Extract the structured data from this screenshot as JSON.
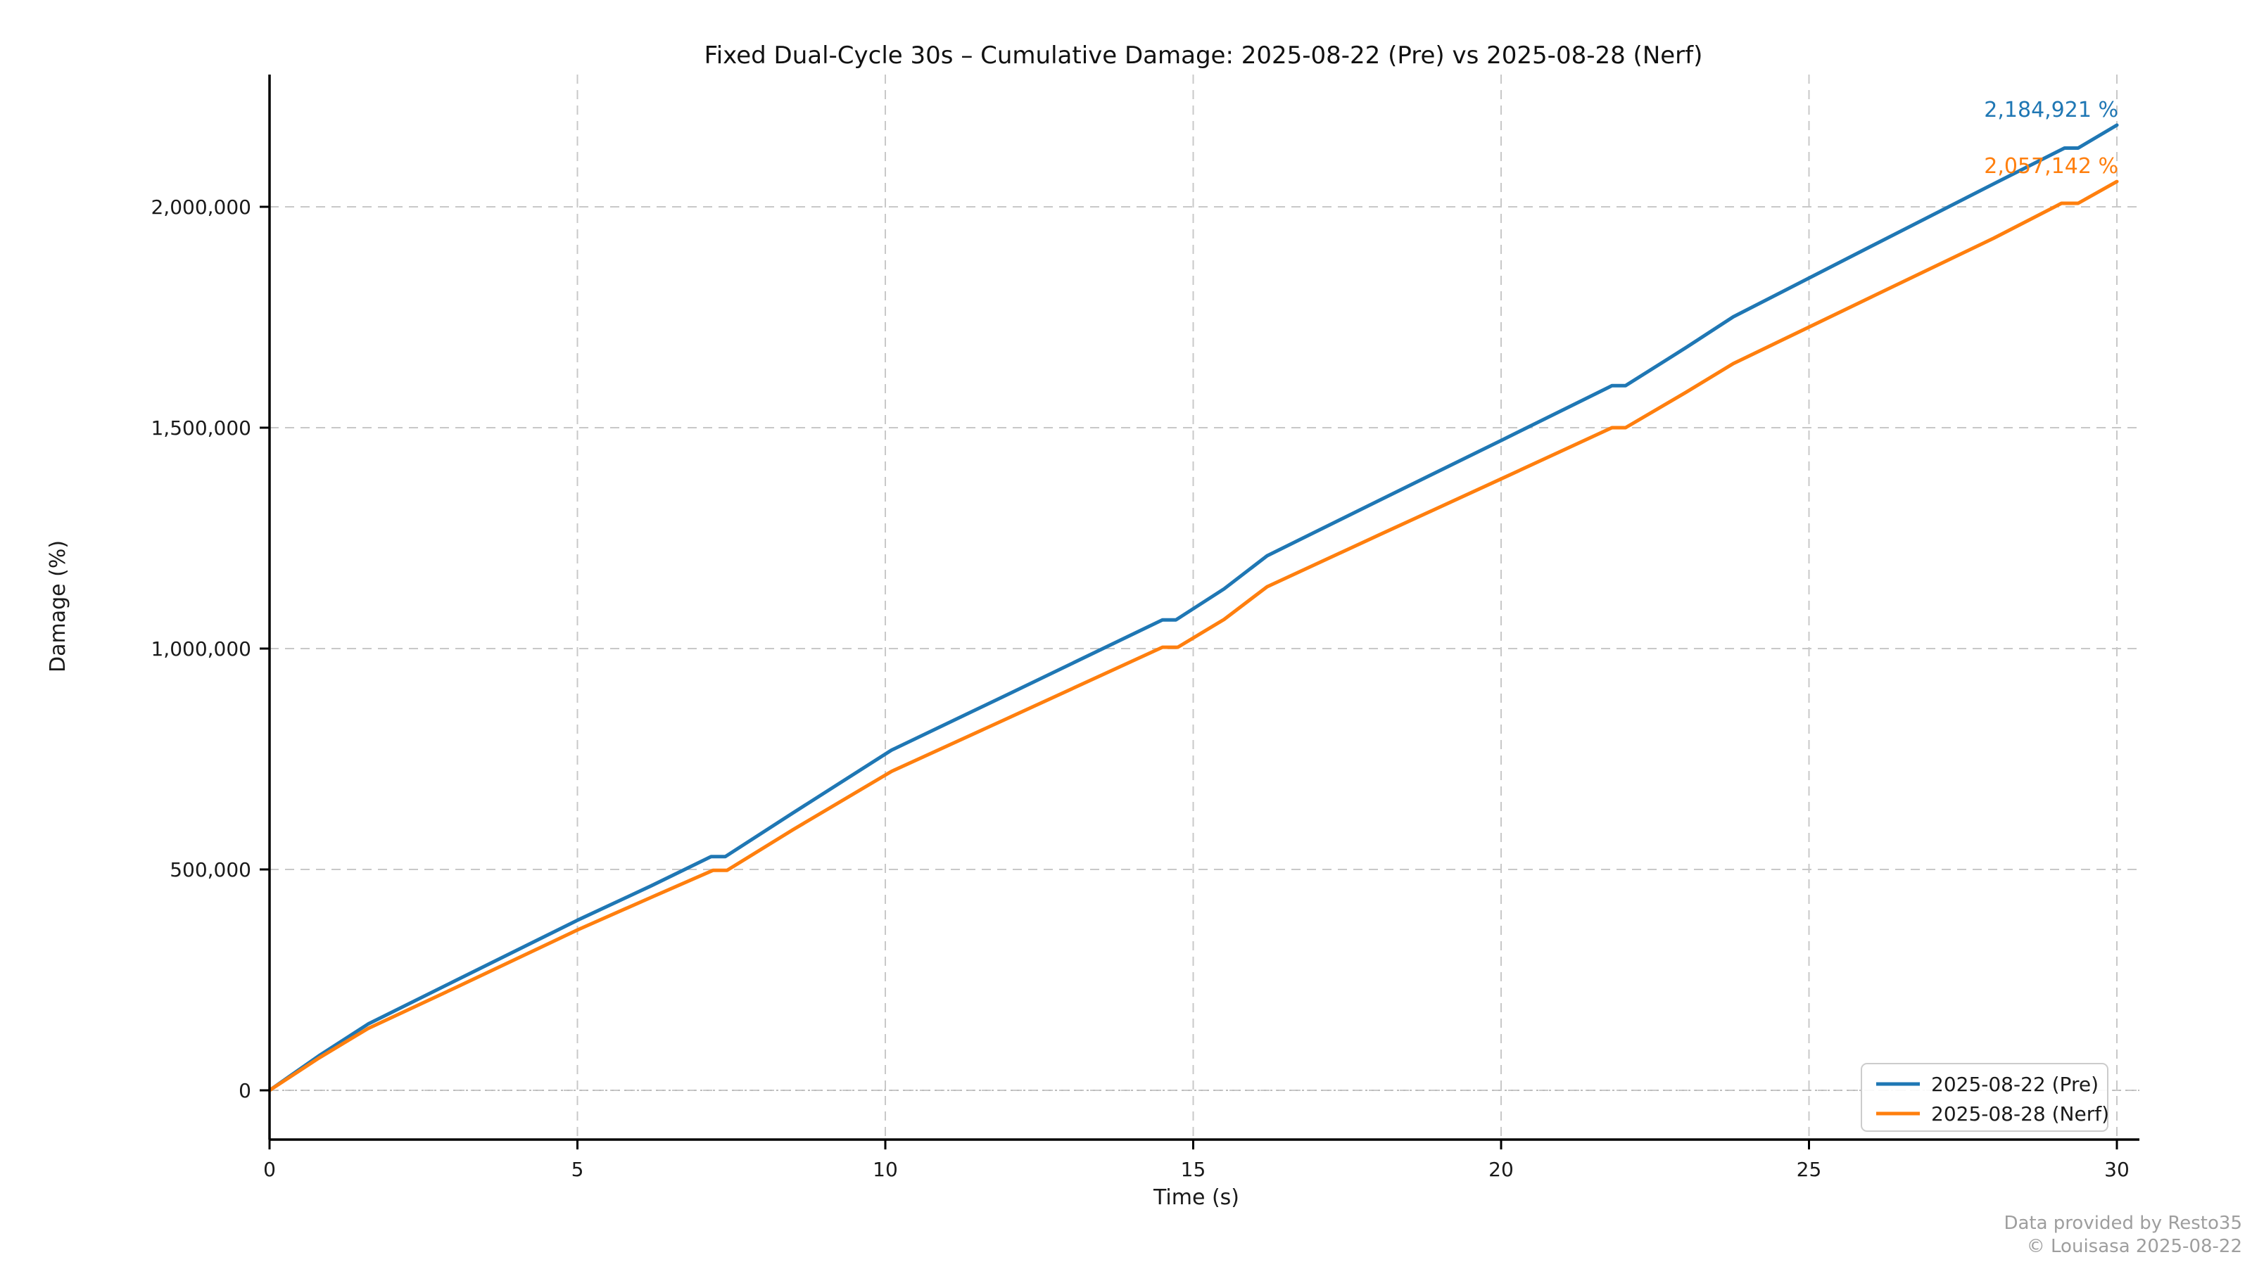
{
  "title": "Fixed Dual-Cycle 30s – Cumulative Damage: 2025-08-22 (Pre) vs 2025-08-28 (Nerf)",
  "footer": {
    "credit": "Data provided by Resto35",
    "copyright": "© Louisasa 2025-08-22"
  },
  "chart_data": {
    "type": "line",
    "title": "Fixed Dual-Cycle 30s – Cumulative Damage: 2025-08-22 (Pre) vs 2025-08-28 (Nerf)",
    "xlabel": "Time (s)",
    "ylabel": "Damage (%)",
    "xlim": [
      0,
      30.4
    ],
    "ylim": [
      -111000,
      2293000
    ],
    "grid": "dashed",
    "legend_position": "lower right",
    "x_ticks": [
      0,
      5,
      10,
      15,
      20,
      25,
      30
    ],
    "y_ticks": [
      0,
      500000,
      1000000,
      1500000,
      2000000
    ],
    "y_tick_labels": [
      "0",
      "500,000",
      "1,000,000",
      "1,500,000",
      "2,000,000"
    ],
    "series": [
      {
        "name": "2025-08-22 (Pre)",
        "color": "#1f77b4",
        "end_value": 2184921,
        "end_label": "2,184,921 %",
        "points": [
          [
            0,
            0
          ],
          [
            0.8,
            78000
          ],
          [
            1.6,
            150000
          ],
          [
            3.0,
            247000
          ],
          [
            5.0,
            385000
          ],
          [
            6.2,
            463000
          ],
          [
            7.17,
            529000
          ],
          [
            7.4,
            529000
          ],
          [
            8.5,
            628000
          ],
          [
            10.1,
            770000
          ],
          [
            12.0,
            897000
          ],
          [
            14.5,
            1065000
          ],
          [
            14.72,
            1065000
          ],
          [
            15.5,
            1135000
          ],
          [
            16.2,
            1210000
          ],
          [
            18.0,
            1334000
          ],
          [
            20.0,
            1471000
          ],
          [
            21.8,
            1595000
          ],
          [
            22.02,
            1595000
          ],
          [
            23.0,
            1681000
          ],
          [
            23.77,
            1751000
          ],
          [
            26.0,
            1910000
          ],
          [
            28.0,
            2052000
          ],
          [
            29.15,
            2133000
          ],
          [
            29.37,
            2133000
          ],
          [
            30,
            2184921
          ]
        ]
      },
      {
        "name": "2025-08-28 (Nerf)",
        "color": "#ff7f0e",
        "end_value": 2057142,
        "end_label": "2,057,142 %",
        "points": [
          [
            0,
            0
          ],
          [
            0.8,
            73000
          ],
          [
            1.6,
            140000
          ],
          [
            3.0,
            231000
          ],
          [
            5.0,
            363000
          ],
          [
            6.2,
            437000
          ],
          [
            7.2,
            498000
          ],
          [
            7.43,
            498000
          ],
          [
            8.5,
            590000
          ],
          [
            10.1,
            722000
          ],
          [
            12.0,
            843000
          ],
          [
            14.5,
            1003000
          ],
          [
            14.75,
            1003000
          ],
          [
            15.5,
            1066000
          ],
          [
            16.2,
            1140000
          ],
          [
            18.0,
            1256000
          ],
          [
            20.0,
            1384000
          ],
          [
            21.8,
            1500000
          ],
          [
            22.02,
            1500000
          ],
          [
            23.0,
            1580000
          ],
          [
            23.77,
            1645000
          ],
          [
            26.0,
            1795000
          ],
          [
            28.0,
            1929000
          ],
          [
            29.1,
            2008000
          ],
          [
            29.37,
            2008000
          ],
          [
            30,
            2057142
          ]
        ]
      }
    ],
    "style": {
      "grid_color": "#c8c8c8",
      "spine_color": "#000000",
      "footer_color": "#9e9e9e",
      "background": "#ffffff"
    }
  }
}
